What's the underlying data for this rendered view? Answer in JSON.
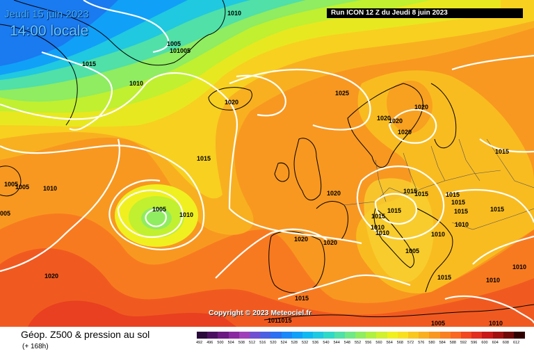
{
  "header": {
    "date": "Jeudi 15 juin 2023",
    "time": "14:00 locale",
    "run": "Run ICON 12 Z du Jeudi 8 juin 2023"
  },
  "copyright": "Copyright © 2023 Meteociel.fr",
  "footer": {
    "title": "Géop. Z500 & pression au sol",
    "subtitle": "(+ 168h)"
  },
  "legend": {
    "values": [
      "492",
      "496",
      "500",
      "504",
      "508",
      "512",
      "516",
      "520",
      "524",
      "528",
      "532",
      "536",
      "540",
      "544",
      "548",
      "552",
      "556",
      "560",
      "564",
      "568",
      "572",
      "576",
      "580",
      "584",
      "588",
      "592",
      "596",
      "600",
      "604",
      "608",
      "612"
    ],
    "colors": [
      "#2a0a3a",
      "#4a1060",
      "#6a1a80",
      "#8a2aa0",
      "#a040b8",
      "#7050d0",
      "#4a60e0",
      "#2a70f0",
      "#1a88f8",
      "#10a0f8",
      "#10b8f0",
      "#20c8e0",
      "#30d8c8",
      "#50e0a8",
      "#70e888",
      "#90ec60",
      "#b0f040",
      "#d0f030",
      "#f0f020",
      "#f8e020",
      "#f8c820",
      "#f8b020",
      "#f89820",
      "#f88020",
      "#f86820",
      "#f04820",
      "#e03020",
      "#c81818",
      "#a01010",
      "#700808",
      "#300000"
    ]
  },
  "isobar_labels": [
    {
      "text": "1010"
    },
    {
      "text": "1005"
    },
    {
      "text": "101005"
    },
    {
      "text": "1015"
    },
    {
      "text": "1010"
    },
    {
      "text": "1020"
    },
    {
      "text": "1025"
    },
    {
      "text": "1020"
    },
    {
      "text": "1020"
    },
    {
      "text": "1020"
    },
    {
      "text": "1020"
    },
    {
      "text": "1015"
    },
    {
      "text": "1015"
    },
    {
      "text": "1005"
    },
    {
      "text": "1005"
    },
    {
      "text": "1010"
    },
    {
      "text": "005"
    },
    {
      "text": "1005"
    },
    {
      "text": "1010"
    },
    {
      "text": "1020"
    },
    {
      "text": "1015"
    },
    {
      "text": "1015"
    },
    {
      "text": "1015"
    },
    {
      "text": "1015"
    },
    {
      "text": "1015"
    },
    {
      "text": "1015"
    },
    {
      "text": "1015"
    },
    {
      "text": "1015"
    },
    {
      "text": "1010"
    },
    {
      "text": "1010"
    },
    {
      "text": "1010"
    },
    {
      "text": "1010"
    },
    {
      "text": "1020"
    },
    {
      "text": "1020"
    },
    {
      "text": "1005"
    },
    {
      "text": "1020"
    },
    {
      "text": "1015"
    },
    {
      "text": "1010"
    },
    {
      "text": "1010"
    },
    {
      "text": "1010"
    },
    {
      "text": "1005"
    },
    {
      "text": "1015"
    },
    {
      "text": "1011015"
    }
  ]
}
